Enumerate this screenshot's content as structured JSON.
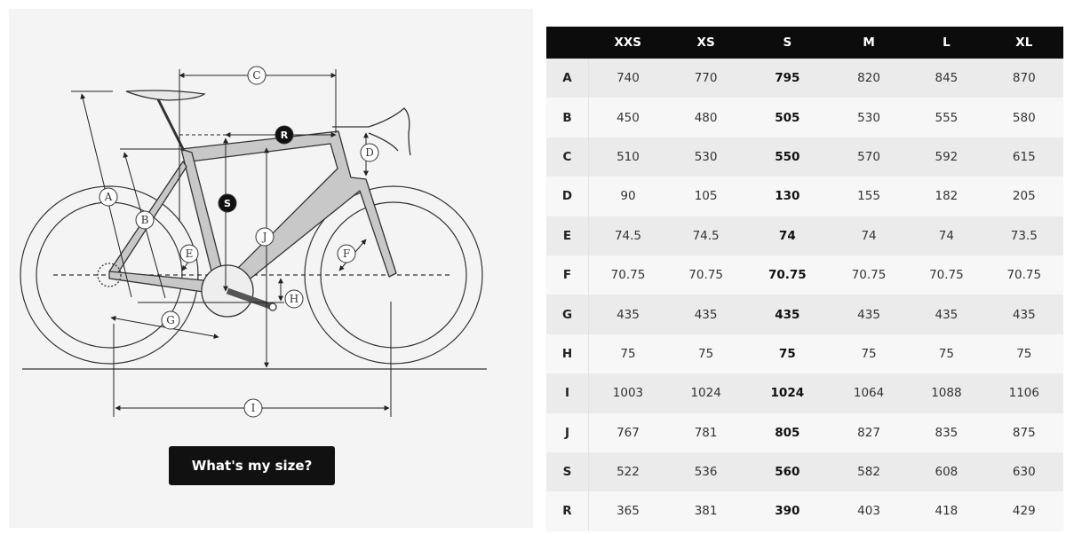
{
  "diagram": {
    "labels": {
      "A": "A",
      "B": "B",
      "C": "C",
      "D": "D",
      "E": "E",
      "F": "F",
      "G": "G",
      "H": "H",
      "I": "I",
      "J": "J",
      "S": "S",
      "R": "R"
    }
  },
  "button": {
    "label": "What's my size?"
  },
  "table": {
    "columns": [
      "XXS",
      "XS",
      "S",
      "M",
      "L",
      "XL"
    ],
    "highlight_column": "S",
    "rows": [
      {
        "label": "A",
        "values": [
          "740",
          "770",
          "795",
          "820",
          "845",
          "870"
        ]
      },
      {
        "label": "B",
        "values": [
          "450",
          "480",
          "505",
          "530",
          "555",
          "580"
        ]
      },
      {
        "label": "C",
        "values": [
          "510",
          "530",
          "550",
          "570",
          "592",
          "615"
        ]
      },
      {
        "label": "D",
        "values": [
          "90",
          "105",
          "130",
          "155",
          "182",
          "205"
        ]
      },
      {
        "label": "E",
        "values": [
          "74.5",
          "74.5",
          "74",
          "74",
          "74",
          "73.5"
        ]
      },
      {
        "label": "F",
        "values": [
          "70.75",
          "70.75",
          "70.75",
          "70.75",
          "70.75",
          "70.75"
        ]
      },
      {
        "label": "G",
        "values": [
          "435",
          "435",
          "435",
          "435",
          "435",
          "435"
        ]
      },
      {
        "label": "H",
        "values": [
          "75",
          "75",
          "75",
          "75",
          "75",
          "75"
        ]
      },
      {
        "label": "I",
        "values": [
          "1003",
          "1024",
          "1024",
          "1064",
          "1088",
          "1106"
        ]
      },
      {
        "label": "J",
        "values": [
          "767",
          "781",
          "805",
          "827",
          "835",
          "875"
        ]
      },
      {
        "label": "S",
        "values": [
          "522",
          "536",
          "560",
          "582",
          "608",
          "630"
        ]
      },
      {
        "label": "R",
        "values": [
          "365",
          "381",
          "390",
          "403",
          "418",
          "429"
        ]
      }
    ]
  },
  "colors": {
    "header_bg": "#0c0c0c",
    "row_odd": "#ebebeb",
    "row_even": "#f7f7f7",
    "frame_fill": "#c8c8c8",
    "button_bg": "#111111"
  }
}
